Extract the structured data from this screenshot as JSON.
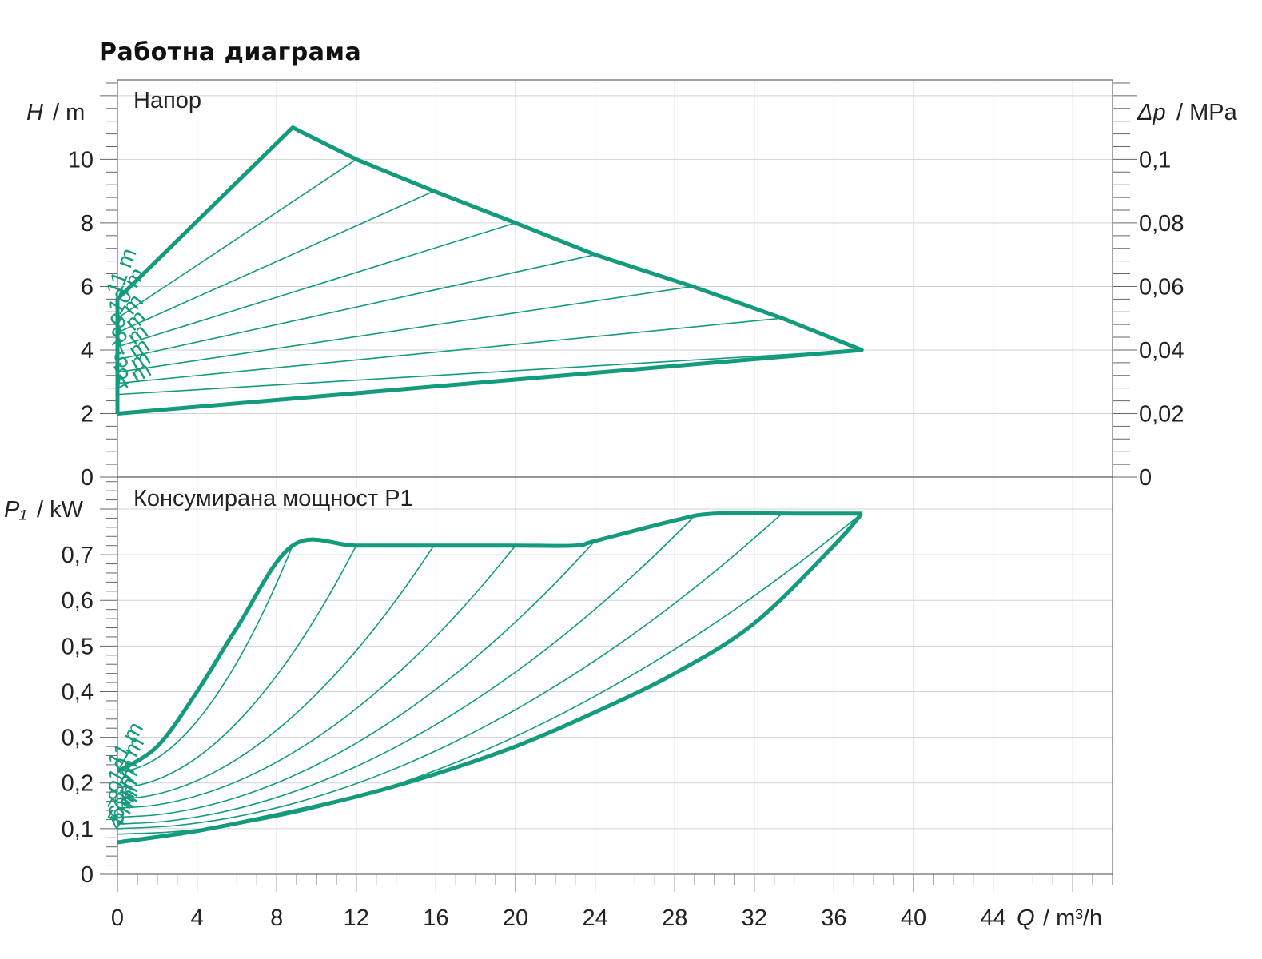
{
  "title": "Работна диаграма",
  "colors": {
    "curve": "#149b7e",
    "grid": "#d2d2d2",
    "axis": "#666666",
    "text": "#222222"
  },
  "chart_data": [
    {
      "type": "line",
      "panel_label": "Напор",
      "ylabel_left_var": "H",
      "ylabel_left_unit": "/ m",
      "ylabel_right_var": "Δp",
      "ylabel_right_unit": "/ MPa",
      "xlim": [
        0,
        50
      ],
      "ylim": [
        0,
        12.5
      ],
      "y_ticks": [
        0,
        2,
        4,
        6,
        8,
        10
      ],
      "y_tick_labels": [
        "0",
        "2",
        "4",
        "6",
        "8",
        "10"
      ],
      "right_ticks": [
        0,
        0.02,
        0.04,
        0.06,
        0.08,
        0.1
      ],
      "right_tick_labels": [
        "0",
        "0,02",
        "0,04",
        "0,06",
        "0,08",
        "0,1"
      ],
      "grid": true,
      "envelope": {
        "x": [
          0,
          0,
          8.8,
          12,
          15.9,
          20,
          24,
          28.9,
          33.4,
          37.4,
          0
        ],
        "y": [
          2.0,
          5.6,
          11.0,
          10.0,
          9.0,
          8.0,
          7.0,
          6.0,
          5.0,
          4.0,
          2.0
        ]
      },
      "series": [
        {
          "name": "11 m",
          "x": [
            0,
            8.8
          ],
          "y": [
            5.6,
            11.0
          ]
        },
        {
          "name": "10 m",
          "x": [
            0,
            12.0
          ],
          "y": [
            5.0,
            10.0
          ]
        },
        {
          "name": "9 m",
          "x": [
            0,
            15.9
          ],
          "y": [
            4.55,
            9.0
          ]
        },
        {
          "name": "8 m",
          "x": [
            0,
            20.0
          ],
          "y": [
            4.1,
            8.0
          ]
        },
        {
          "name": "7 m",
          "x": [
            0,
            24.0
          ],
          "y": [
            3.7,
            7.0
          ]
        },
        {
          "name": "6 m",
          "x": [
            0,
            28.9
          ],
          "y": [
            3.3,
            6.0
          ]
        },
        {
          "name": "5 m",
          "x": [
            0,
            33.4
          ],
          "y": [
            2.95,
            5.0
          ]
        },
        {
          "name": "4 m",
          "x": [
            0,
            37.4
          ],
          "y": [
            2.6,
            4.0
          ]
        }
      ]
    },
    {
      "type": "line",
      "panel_label": "Консумирана мощност P1",
      "ylabel_var": "P₁",
      "ylabel_unit": "/ kW",
      "xlabel_var": "Q",
      "xlabel_unit": "/ m³/h",
      "xlim": [
        0,
        50
      ],
      "ylim": [
        0,
        0.87
      ],
      "x_ticks": [
        0,
        4,
        8,
        12,
        16,
        20,
        24,
        28,
        32,
        36,
        40,
        44
      ],
      "x_tick_labels": [
        "0",
        "4",
        "8",
        "12",
        "16",
        "20",
        "24",
        "28",
        "32",
        "36",
        "40",
        "44"
      ],
      "y_ticks": [
        0,
        0.1,
        0.2,
        0.3,
        0.4,
        0.5,
        0.6,
        0.7
      ],
      "y_tick_labels": [
        "0",
        "0,1",
        "0,2",
        "0,3",
        "0,4",
        "0,5",
        "0,6",
        "0,7"
      ],
      "grid": true,
      "upper_boundary": {
        "x": [
          0,
          2,
          4,
          6,
          8.8,
          12,
          16,
          20,
          23,
          24,
          28,
          30,
          34,
          37.4
        ],
        "y": [
          0.225,
          0.28,
          0.4,
          0.54,
          0.72,
          0.72,
          0.72,
          0.72,
          0.72,
          0.73,
          0.775,
          0.79,
          0.79,
          0.79
        ]
      },
      "lower_boundary": {
        "x": [
          0,
          4,
          8,
          12,
          16,
          20,
          24,
          28,
          32,
          36,
          37.4
        ],
        "y": [
          0.07,
          0.095,
          0.13,
          0.17,
          0.22,
          0.28,
          0.355,
          0.44,
          0.55,
          0.72,
          0.79
        ]
      },
      "series": [
        {
          "name": "11 m",
          "x": [
            0,
            8.8
          ],
          "y": [
            0.225,
            0.72
          ]
        },
        {
          "name": "10 m",
          "x": [
            0,
            12.0
          ],
          "y": [
            0.19,
            0.72
          ]
        },
        {
          "name": "9 m",
          "x": [
            0,
            15.9
          ],
          "y": [
            0.165,
            0.72
          ]
        },
        {
          "name": "8 m",
          "x": [
            0,
            20.0
          ],
          "y": [
            0.145,
            0.72
          ]
        },
        {
          "name": "7 m",
          "x": [
            0,
            24.0
          ],
          "y": [
            0.125,
            0.73
          ]
        },
        {
          "name": "6 m",
          "x": [
            0,
            28.9
          ],
          "y": [
            0.11,
            0.78
          ]
        },
        {
          "name": "5 m",
          "x": [
            0,
            33.4
          ],
          "y": [
            0.1,
            0.79
          ]
        },
        {
          "name": "4 m",
          "x": [
            0,
            37.4
          ],
          "y": [
            0.088,
            0.79
          ]
        }
      ]
    }
  ]
}
